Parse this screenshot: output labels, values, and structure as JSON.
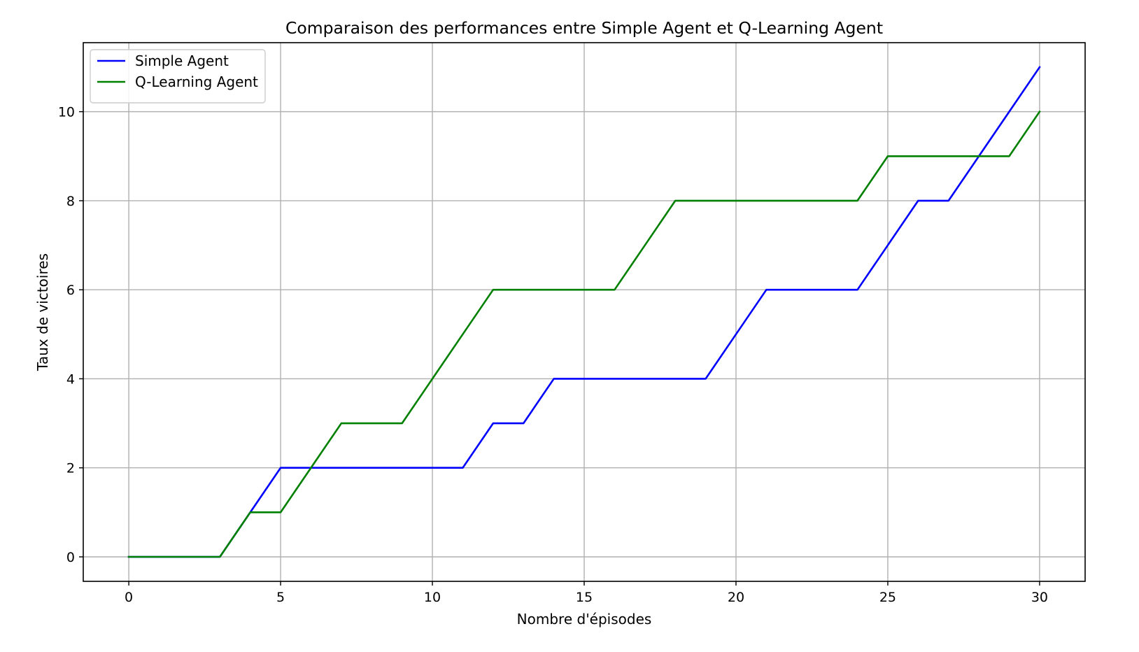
{
  "chart_data": {
    "type": "line",
    "title": "Comparaison des performances entre Simple Agent et Q-Learning Agent",
    "xlabel": "Nombre d'épisodes",
    "ylabel": "Taux de victoires",
    "xlim": [
      -1.5,
      31.5
    ],
    "ylim": [
      -0.55,
      11.55
    ],
    "xticks": [
      0,
      5,
      10,
      15,
      20,
      25,
      30
    ],
    "yticks": [
      0,
      2,
      4,
      6,
      8,
      10
    ],
    "grid": true,
    "legend_position": "top-left",
    "x": [
      0,
      1,
      2,
      3,
      4,
      5,
      6,
      7,
      8,
      9,
      10,
      11,
      12,
      13,
      14,
      15,
      16,
      17,
      18,
      19,
      20,
      21,
      22,
      23,
      24,
      25,
      26,
      27,
      28,
      29,
      30
    ],
    "series": [
      {
        "name": "Simple Agent",
        "color": "#0000ff",
        "values": [
          0,
          0,
          0,
          0,
          1,
          2,
          2,
          2,
          2,
          2,
          2,
          2,
          3,
          3,
          4,
          4,
          4,
          4,
          4,
          4,
          5,
          6,
          6,
          6,
          6,
          7,
          8,
          8,
          9,
          10,
          11
        ]
      },
      {
        "name": "Q-Learning Agent",
        "color": "#008000",
        "values": [
          0,
          0,
          0,
          0,
          1,
          1,
          2,
          3,
          3,
          3,
          4,
          5,
          6,
          6,
          6,
          6,
          6,
          7,
          8,
          8,
          8,
          8,
          8,
          8,
          8,
          9,
          9,
          9,
          9,
          9,
          10
        ]
      }
    ]
  }
}
